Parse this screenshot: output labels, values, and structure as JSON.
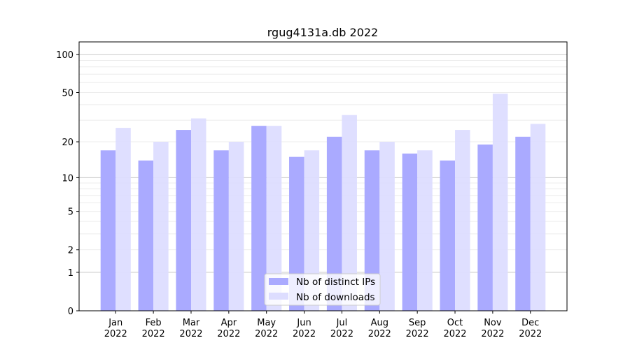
{
  "chart_data": {
    "type": "bar",
    "title": "rgug4131a.db 2022",
    "xlabel": "",
    "ylabel": "",
    "y_scale": "log(1+y)",
    "ylim": [
      0,
      126
    ],
    "yticks": [
      0,
      1,
      2,
      5,
      10,
      20,
      50,
      100
    ],
    "grid": true,
    "legend_position": "lower center",
    "categories": [
      "Jan\n2022",
      "Feb\n2022",
      "Mar\n2022",
      "Apr\n2022",
      "May\n2022",
      "Jun\n2022",
      "Jul\n2022",
      "Aug\n2022",
      "Sep\n2022",
      "Oct\n2022",
      "Nov\n2022",
      "Dec\n2022"
    ],
    "series": [
      {
        "name": "Nb of distinct IPs",
        "color": "#aaaaff",
        "values": [
          17,
          14,
          25,
          17,
          27,
          15,
          22,
          17,
          16,
          14,
          19,
          22
        ]
      },
      {
        "name": "Nb of downloads",
        "color": "#ddddff",
        "values": [
          26,
          20,
          31,
          20,
          27,
          17,
          33,
          20,
          17,
          25,
          49,
          28
        ]
      }
    ]
  }
}
